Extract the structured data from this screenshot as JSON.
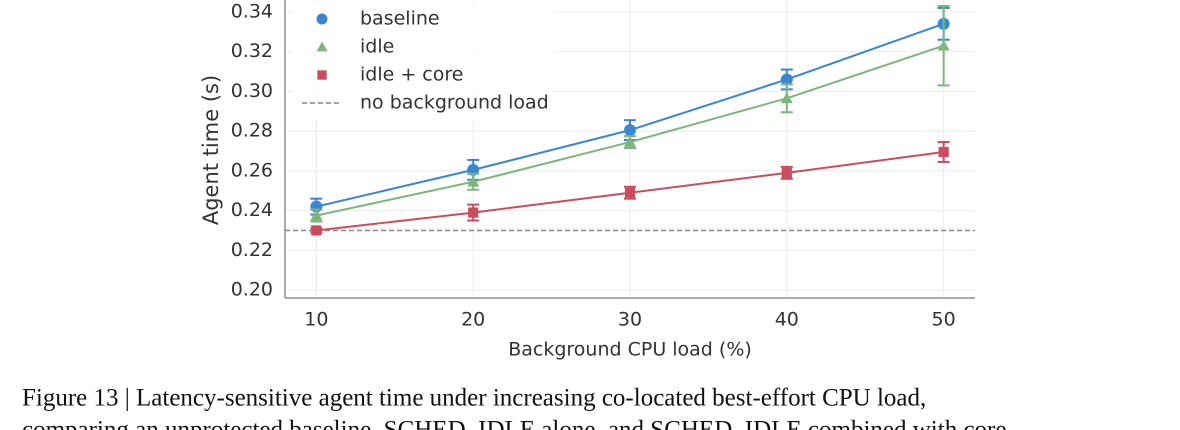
{
  "chart_data": {
    "type": "line",
    "xlabel": "Background CPU load (%)",
    "ylabel": "Agent time (s)",
    "x": [
      10,
      20,
      30,
      40,
      50
    ],
    "series": [
      {
        "name": "baseline",
        "color": "#3a86d1",
        "marker": "circle",
        "values": [
          0.242,
          0.2605,
          0.2805,
          0.306,
          0.334
        ],
        "errors": [
          0.004,
          0.005,
          0.005,
          0.005,
          0.008
        ]
      },
      {
        "name": "idle",
        "color": "#7db67c",
        "marker": "triangle",
        "values": [
          0.2375,
          0.2545,
          0.2745,
          0.2965,
          0.323
        ],
        "errors": [
          0.003,
          0.004,
          0.003,
          0.007,
          0.02
        ]
      },
      {
        "name": "idle + core",
        "color": "#cb4d5d",
        "marker": "square",
        "values": [
          0.23,
          0.239,
          0.249,
          0.259,
          0.2695
        ],
        "errors": [
          0.001,
          0.004,
          0.003,
          0.003,
          0.005
        ]
      }
    ],
    "reference_line": {
      "value": 0.23,
      "label": "no background load",
      "color": "#888888"
    },
    "xlim": [
      8,
      52
    ],
    "ylim": [
      0.196,
      0.346
    ],
    "xticks": [
      10,
      20,
      30,
      40,
      50
    ],
    "yticks": [
      {
        "value": 0.2,
        "label": "0.20"
      },
      {
        "value": 0.22,
        "label": "0.22"
      },
      {
        "value": 0.24,
        "label": "0.24"
      },
      {
        "value": 0.26,
        "label": "0.26"
      },
      {
        "value": 0.28,
        "label": "0.28"
      },
      {
        "value": 0.3,
        "label": "0.30"
      },
      {
        "value": 0.32,
        "label": "0.32"
      },
      {
        "value": 0.34,
        "label": "0.34"
      }
    ],
    "grid": true,
    "legend": "upper left"
  },
  "caption": [
    "Figure 13 | Latency-sensitive agent time under increasing co-located best-effort CPU load,",
    "comparing an unprotected baseline, SCHED_IDLE alone, and SCHED_IDLE combined with core"
  ]
}
